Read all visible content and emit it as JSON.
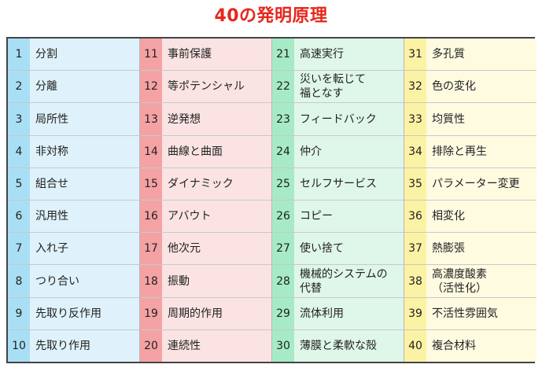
{
  "title": "40の発明原理",
  "columns": [
    {
      "colors": {
        "number_bg": "#a9dff4",
        "name_bg": "#dff2fb"
      },
      "items": [
        {
          "num": "1",
          "name": "分割"
        },
        {
          "num": "2",
          "name": "分離"
        },
        {
          "num": "3",
          "name": "局所性"
        },
        {
          "num": "4",
          "name": "非対称"
        },
        {
          "num": "5",
          "name": "組合せ"
        },
        {
          "num": "6",
          "name": "汎用性"
        },
        {
          "num": "7",
          "name": "入れ子"
        },
        {
          "num": "8",
          "name": "つり合い"
        },
        {
          "num": "9",
          "name": "先取り反作用"
        },
        {
          "num": "10",
          "name": "先取り作用"
        }
      ]
    },
    {
      "colors": {
        "number_bg": "#f4a2a4",
        "name_bg": "#fbe3e3"
      },
      "items": [
        {
          "num": "11",
          "name": "事前保護"
        },
        {
          "num": "12",
          "name": "等ポテンシャル"
        },
        {
          "num": "13",
          "name": "逆発想"
        },
        {
          "num": "14",
          "name": "曲線と曲面"
        },
        {
          "num": "15",
          "name": "ダイナミック"
        },
        {
          "num": "16",
          "name": "アバウト"
        },
        {
          "num": "17",
          "name": "他次元"
        },
        {
          "num": "18",
          "name": "振動"
        },
        {
          "num": "19",
          "name": "周期的作用"
        },
        {
          "num": "20",
          "name": "連続性"
        }
      ]
    },
    {
      "colors": {
        "number_bg": "#a6ebc6",
        "name_bg": "#dff7e8"
      },
      "items": [
        {
          "num": "21",
          "name": "高速実行"
        },
        {
          "num": "22",
          "name": "災いを転じて\n福となす"
        },
        {
          "num": "23",
          "name": "フィードバック"
        },
        {
          "num": "24",
          "name": "仲介"
        },
        {
          "num": "25",
          "name": "セルフサービス"
        },
        {
          "num": "26",
          "name": "コピー"
        },
        {
          "num": "27",
          "name": "使い捨て"
        },
        {
          "num": "28",
          "name": "機械的システムの\n代替"
        },
        {
          "num": "29",
          "name": "流体利用"
        },
        {
          "num": "30",
          "name": "薄膜と柔軟な殻"
        }
      ]
    },
    {
      "colors": {
        "number_bg": "#fbf3a3",
        "name_bg": "#fefbe1"
      },
      "items": [
        {
          "num": "31",
          "name": "多孔質"
        },
        {
          "num": "32",
          "name": "色の変化"
        },
        {
          "num": "33",
          "name": "均質性"
        },
        {
          "num": "34",
          "name": "排除と再生"
        },
        {
          "num": "35",
          "name": "パラメーター変更"
        },
        {
          "num": "36",
          "name": "相変化"
        },
        {
          "num": "37",
          "name": "熱膨張"
        },
        {
          "num": "38",
          "name": "高濃度酸素\n（活性化）"
        },
        {
          "num": "39",
          "name": "不活性雰囲気"
        },
        {
          "num": "40",
          "name": "複合材料"
        }
      ]
    }
  ]
}
